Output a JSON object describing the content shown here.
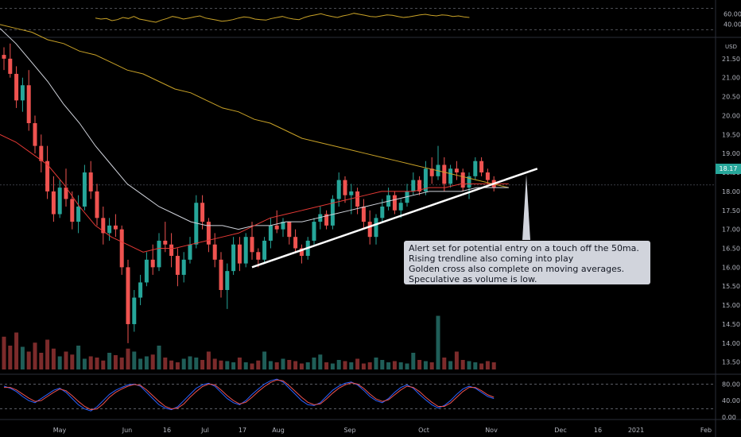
{
  "chart_data": [
    {
      "type": "line",
      "panel": "oscillator-top",
      "tick_labels": [
        "60.00",
        "40.00"
      ],
      "ylim": [
        20,
        80
      ],
      "levels": [
        70,
        30
      ],
      "series": [
        {
          "color": "#c9a227",
          "values": [
            52,
            50,
            51,
            47,
            49,
            53,
            51,
            55,
            50,
            48,
            46,
            44,
            48,
            51,
            55,
            53,
            50,
            52,
            54,
            56,
            52,
            50,
            48,
            46,
            47,
            49,
            52,
            54,
            53,
            50,
            49,
            48,
            51,
            53,
            55,
            52,
            50,
            49,
            53,
            56,
            58,
            60,
            57,
            55,
            53,
            56,
            58,
            61,
            59,
            57,
            55,
            54,
            56,
            58,
            57,
            55,
            53,
            54,
            56,
            58,
            59,
            57,
            56,
            58,
            57,
            55,
            56,
            54,
            53
          ]
        }
      ]
    },
    {
      "type": "candlestick",
      "panel": "price",
      "currency_label": "USD",
      "last_price": "18.17",
      "y_ticks": [
        "21.50",
        "21.00",
        "20.50",
        "20.00",
        "19.50",
        "19.00",
        "18.50",
        "18.00",
        "17.50",
        "17.00",
        "16.50",
        "16.00",
        "15.50",
        "15.00",
        "14.50",
        "14.00",
        "13.50"
      ],
      "ylim": [
        13.2,
        22.0
      ],
      "x_ticks": [
        "May",
        "Jun",
        "16",
        "Jul",
        "17",
        "Aug",
        "Sep",
        "Oct",
        "Nov",
        "Dec",
        "16",
        "2021",
        "Feb"
      ],
      "candles": [
        [
          21.6,
          21.8,
          21.2,
          21.5
        ],
        [
          21.5,
          21.9,
          21.0,
          21.1
        ],
        [
          21.1,
          21.3,
          20.2,
          20.4
        ],
        [
          20.4,
          21.0,
          20.1,
          20.8
        ],
        [
          20.8,
          21.2,
          19.6,
          19.8
        ],
        [
          19.8,
          20.0,
          19.0,
          19.2
        ],
        [
          19.2,
          19.5,
          18.5,
          18.8
        ],
        [
          18.8,
          19.2,
          17.8,
          18.0
        ],
        [
          18.0,
          18.4,
          17.2,
          17.4
        ],
        [
          17.4,
          18.3,
          17.3,
          18.1
        ],
        [
          18.1,
          18.6,
          17.6,
          17.8
        ],
        [
          17.8,
          18.0,
          17.0,
          17.2
        ],
        [
          17.2,
          17.9,
          16.9,
          17.6
        ],
        [
          17.6,
          18.7,
          17.5,
          18.5
        ],
        [
          18.5,
          18.8,
          17.8,
          18.0
        ],
        [
          18.0,
          18.2,
          17.1,
          17.3
        ],
        [
          17.3,
          17.6,
          16.6,
          16.9
        ],
        [
          16.9,
          17.3,
          16.7,
          17.1
        ],
        [
          17.1,
          17.4,
          16.8,
          17.0
        ],
        [
          17.0,
          17.1,
          15.8,
          16.0
        ],
        [
          16.0,
          16.2,
          14.0,
          14.5
        ],
        [
          14.5,
          15.4,
          14.3,
          15.2
        ],
        [
          15.2,
          15.8,
          15.0,
          15.6
        ],
        [
          15.6,
          16.4,
          15.5,
          16.2
        ],
        [
          16.2,
          16.6,
          15.8,
          16.0
        ],
        [
          16.0,
          16.9,
          15.9,
          16.7
        ],
        [
          16.7,
          17.2,
          16.4,
          16.6
        ],
        [
          16.6,
          16.9,
          16.0,
          16.3
        ],
        [
          16.3,
          16.5,
          15.5,
          15.8
        ],
        [
          15.8,
          16.4,
          15.6,
          16.2
        ],
        [
          16.2,
          16.8,
          16.1,
          16.6
        ],
        [
          16.6,
          17.9,
          16.5,
          17.7
        ],
        [
          17.7,
          17.9,
          17.0,
          17.2
        ],
        [
          17.2,
          17.3,
          16.4,
          16.6
        ],
        [
          16.6,
          16.9,
          16.0,
          16.2
        ],
        [
          16.2,
          16.4,
          15.2,
          15.4
        ],
        [
          15.4,
          16.1,
          14.9,
          15.9
        ],
        [
          15.9,
          16.8,
          15.8,
          16.6
        ],
        [
          16.6,
          16.8,
          15.9,
          16.1
        ],
        [
          16.1,
          16.9,
          16.0,
          16.8
        ],
        [
          16.8,
          17.2,
          16.2,
          16.4
        ],
        [
          16.4,
          16.5,
          16.0,
          16.2
        ],
        [
          16.2,
          16.8,
          16.1,
          16.7
        ],
        [
          16.7,
          17.3,
          16.5,
          17.1
        ],
        [
          17.1,
          17.5,
          16.9,
          17.0
        ],
        [
          17.0,
          17.3,
          16.8,
          17.2
        ],
        [
          17.2,
          17.2,
          16.6,
          16.8
        ],
        [
          16.8,
          17.0,
          16.4,
          16.5
        ],
        [
          16.5,
          16.6,
          16.1,
          16.3
        ],
        [
          16.3,
          16.8,
          16.2,
          16.7
        ],
        [
          16.7,
          17.3,
          16.6,
          17.2
        ],
        [
          17.2,
          17.6,
          17.0,
          17.4
        ],
        [
          17.4,
          17.5,
          17.0,
          17.1
        ],
        [
          17.1,
          17.9,
          17.0,
          17.8
        ],
        [
          17.8,
          18.5,
          17.6,
          18.3
        ],
        [
          18.3,
          18.4,
          17.7,
          17.9
        ],
        [
          17.9,
          18.2,
          17.4,
          18.0
        ],
        [
          18.0,
          18.1,
          17.4,
          17.6
        ],
        [
          17.6,
          17.8,
          17.0,
          17.2
        ],
        [
          17.2,
          17.5,
          16.6,
          16.8
        ],
        [
          16.8,
          17.4,
          16.6,
          17.3
        ],
        [
          17.3,
          17.8,
          17.2,
          17.6
        ],
        [
          17.6,
          18.1,
          17.5,
          17.9
        ],
        [
          17.9,
          18.0,
          17.4,
          17.5
        ],
        [
          17.5,
          17.8,
          17.3,
          17.7
        ],
        [
          17.7,
          18.2,
          17.6,
          18.0
        ],
        [
          18.0,
          18.5,
          17.9,
          18.3
        ],
        [
          18.3,
          18.4,
          17.9,
          18.0
        ],
        [
          18.0,
          18.8,
          17.9,
          18.6
        ],
        [
          18.6,
          18.9,
          18.2,
          18.4
        ],
        [
          18.4,
          19.2,
          18.3,
          18.7
        ],
        [
          18.7,
          18.9,
          18.0,
          18.2
        ],
        [
          18.2,
          18.7,
          18.1,
          18.6
        ],
        [
          18.6,
          18.8,
          18.3,
          18.5
        ],
        [
          18.5,
          18.6,
          18.0,
          18.1
        ],
        [
          18.1,
          18.5,
          17.8,
          18.4
        ],
        [
          18.4,
          18.9,
          18.3,
          18.8
        ],
        [
          18.8,
          18.9,
          18.4,
          18.5
        ],
        [
          18.5,
          18.6,
          18.2,
          18.3
        ],
        [
          18.3,
          18.4,
          18.0,
          18.1
        ]
      ],
      "series": [
        {
          "name": "",
          "color": "#c9a227",
          "values": [
            22.4,
            22.3,
            22.2,
            22.0,
            21.9,
            21.7,
            21.6,
            21.4,
            21.2,
            21.1,
            20.9,
            20.7,
            20.6,
            20.4,
            20.2,
            20.1,
            19.9,
            19.8,
            19.6,
            19.4,
            19.3,
            19.2,
            19.1,
            19.0,
            18.9,
            18.8,
            18.7,
            18.6,
            18.5,
            18.4,
            18.3,
            18.2,
            18.1
          ]
        },
        {
          "name": "",
          "color": "#d1d4dc",
          "values": [
            22.3,
            21.9,
            21.4,
            20.9,
            20.3,
            19.8,
            19.2,
            18.7,
            18.2,
            17.9,
            17.6,
            17.4,
            17.2,
            17.1,
            17.1,
            17.0,
            17.1,
            17.1,
            17.2,
            17.2,
            17.3,
            17.4,
            17.5,
            17.6,
            17.7,
            17.8,
            17.9,
            18.0,
            18.0,
            18.0,
            18.1,
            18.1,
            18.1
          ]
        },
        {
          "name": "",
          "color": "#e53935",
          "values": [
            19.5,
            19.3,
            19.0,
            18.7,
            18.2,
            17.6,
            17.1,
            16.8,
            16.6,
            16.4,
            16.5,
            16.5,
            16.6,
            16.7,
            16.8,
            16.9,
            17.1,
            17.3,
            17.4,
            17.5,
            17.6,
            17.7,
            17.8,
            17.9,
            18.0,
            18.0,
            18.0,
            18.1,
            18.1,
            18.2,
            18.2,
            18.2,
            18.2
          ]
        }
      ],
      "trendline": {
        "start": [
          40,
          16.0
        ],
        "end": [
          86,
          18.6
        ]
      },
      "annotation": [
        "Alert set for potential entry on a touch off the 50ma.",
        "Rising trendline also coming into play",
        "Golden cross also complete on moving averages.",
        "Speculative as volume is low."
      ]
    },
    {
      "type": "bar",
      "panel": "volume",
      "values": [
        55,
        40,
        62,
        38,
        30,
        45,
        28,
        50,
        35,
        22,
        30,
        25,
        40,
        18,
        22,
        20,
        15,
        28,
        24,
        20,
        35,
        30,
        18,
        22,
        25,
        40,
        20,
        15,
        12,
        18,
        22,
        20,
        16,
        30,
        18,
        15,
        14,
        12,
        20,
        12,
        10,
        15,
        30,
        14,
        12,
        18,
        16,
        14,
        10,
        12,
        20,
        25,
        12,
        10,
        16,
        14,
        12,
        18,
        10,
        12,
        20,
        16,
        12,
        14,
        12,
        10,
        28,
        16,
        14,
        12,
        90,
        20,
        14,
        30,
        16,
        14,
        12,
        10,
        14,
        12
      ]
    },
    {
      "type": "line",
      "panel": "stochastic",
      "tick_labels": [
        "80.00",
        "40.00",
        "0.00"
      ],
      "ylim": [
        0,
        100
      ],
      "series": [
        {
          "color": "#2962ff",
          "values": [
            75,
            70,
            62,
            50,
            40,
            35,
            45,
            55,
            65,
            70,
            60,
            45,
            30,
            20,
            15,
            25,
            40,
            55,
            65,
            72,
            78,
            80,
            75,
            60,
            45,
            30,
            22,
            18,
            25,
            40,
            55,
            70,
            78,
            82,
            75,
            60,
            45,
            35,
            30,
            40,
            55,
            68,
            80,
            88,
            92,
            85,
            70,
            55,
            40,
            30,
            28,
            35,
            50,
            65,
            75,
            82,
            85,
            78,
            65,
            50,
            40,
            35,
            45,
            60,
            72,
            78,
            70,
            55,
            42,
            30,
            22,
            28,
            40,
            55,
            68,
            75,
            70,
            60,
            50,
            45
          ]
        },
        {
          "color": "#ef5350",
          "values": [
            72,
            72,
            66,
            56,
            46,
            38,
            40,
            50,
            60,
            68,
            64,
            52,
            38,
            26,
            18,
            20,
            32,
            48,
            60,
            68,
            75,
            79,
            77,
            66,
            52,
            38,
            26,
            20,
            22,
            32,
            48,
            62,
            74,
            80,
            78,
            66,
            52,
            40,
            32,
            36,
            48,
            62,
            74,
            84,
            90,
            88,
            76,
            62,
            48,
            36,
            30,
            32,
            44,
            58,
            70,
            78,
            83,
            80,
            70,
            56,
            44,
            38,
            42,
            54,
            66,
            75,
            72,
            62,
            48,
            36,
            26,
            26,
            34,
            48,
            62,
            72,
            72,
            64,
            54,
            48
          ]
        }
      ]
    }
  ]
}
